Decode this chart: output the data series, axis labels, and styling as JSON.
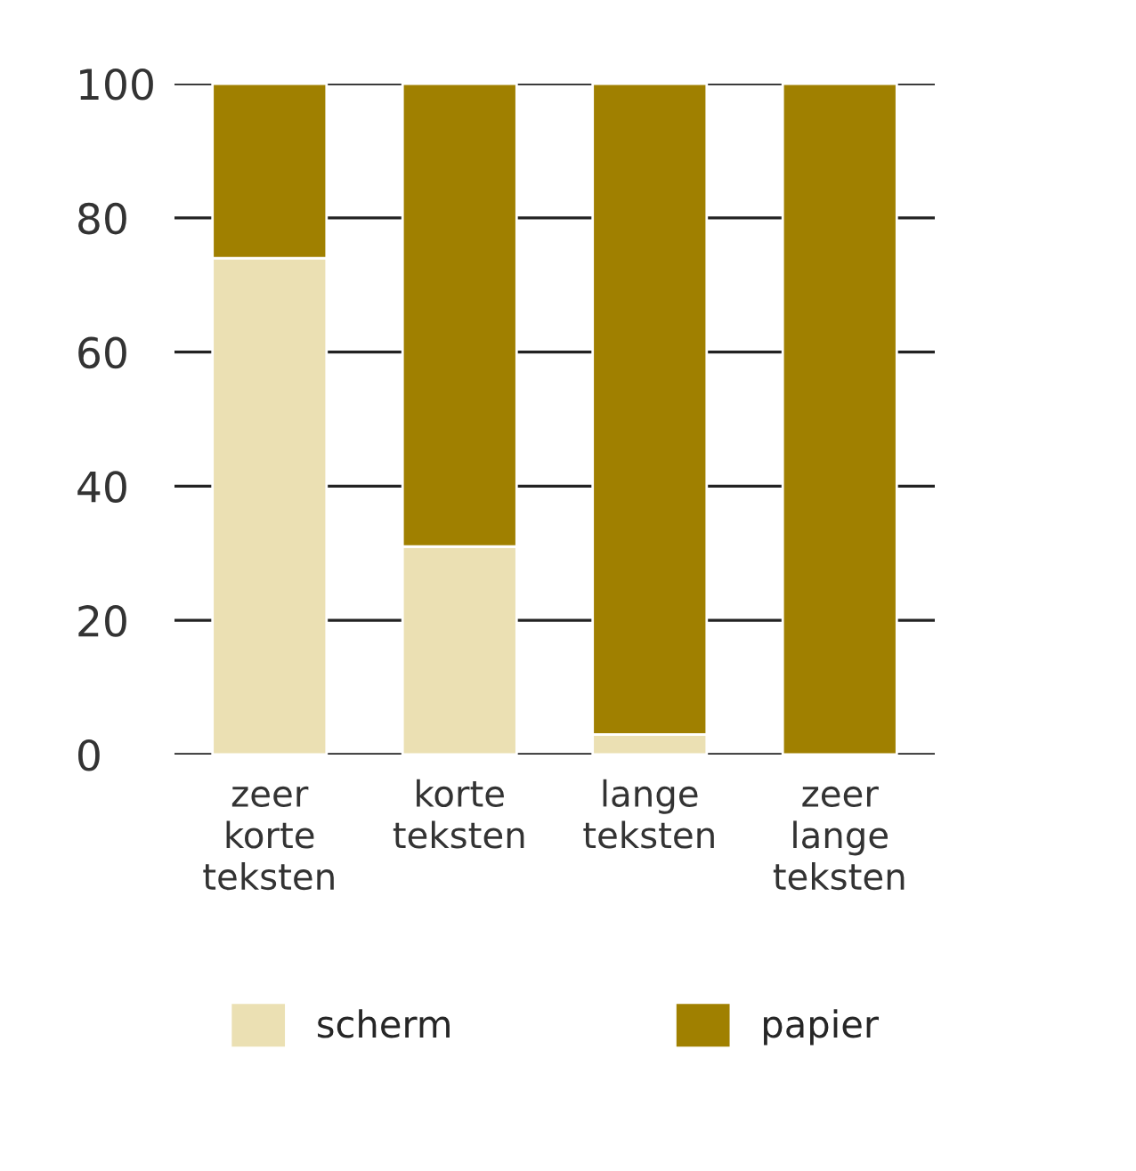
{
  "chart_data": {
    "type": "bar",
    "stacked": true,
    "categories": [
      "zeer\nkorte\nteksten",
      "korte\nteksten",
      "lange\nteksten",
      "zeer\nlange\nteksten"
    ],
    "series": [
      {
        "name": "scherm",
        "color": "#ebe0b3",
        "values": [
          74,
          31,
          3,
          0
        ]
      },
      {
        "name": "papier",
        "color": "#a08000",
        "values": [
          26,
          69,
          97,
          100
        ]
      }
    ],
    "ylim": [
      0,
      100
    ],
    "yticks": [
      0,
      20,
      40,
      60,
      80,
      100
    ],
    "grid": "y",
    "legend": "bottom"
  }
}
